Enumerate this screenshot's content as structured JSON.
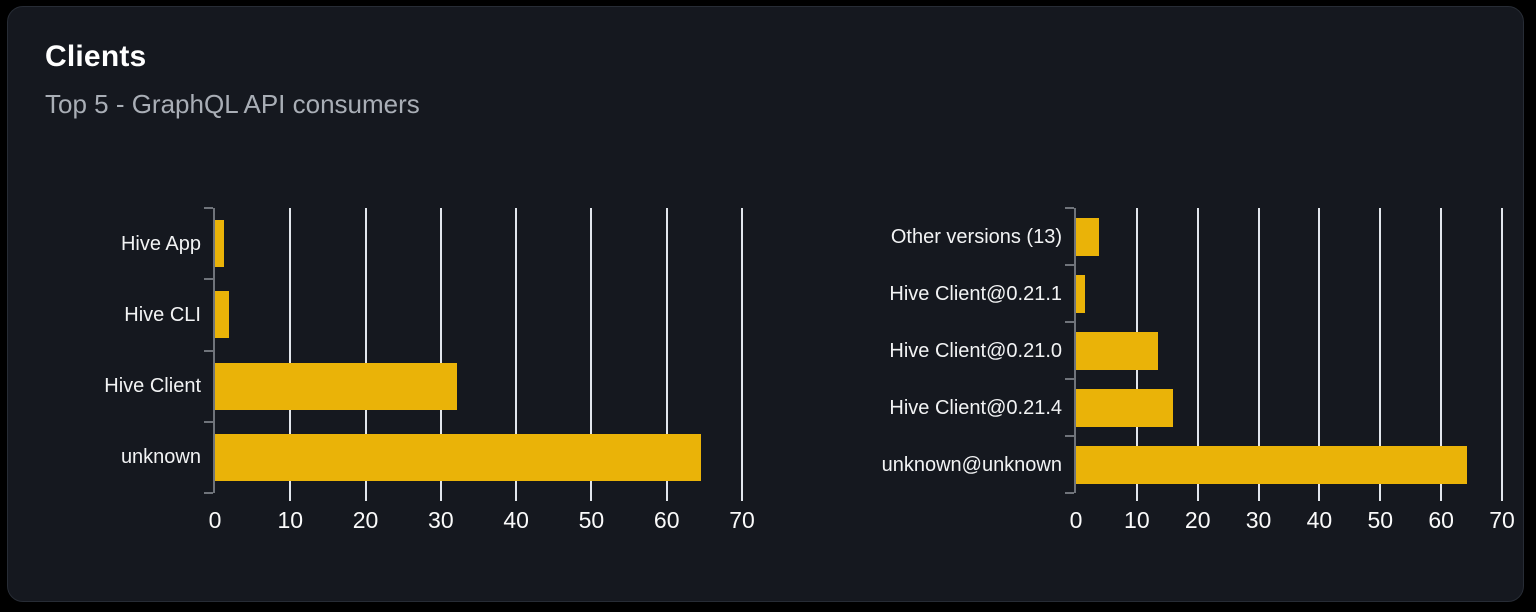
{
  "card": {
    "title": "Clients",
    "subtitle": "Top 5 - GraphQL API consumers"
  },
  "colors": {
    "page_bg": "#000000",
    "card_bg": "#15181f",
    "card_border": "#272c35",
    "bar": "#eab308",
    "gridline": "#e2e6ec",
    "axis": "#6f737a",
    "category_label": "#f2f3f4",
    "tick_label": "#fafafa",
    "title": "#ffffff",
    "subtitle": "#a9aeb6"
  },
  "chart_data": [
    {
      "type": "bar",
      "orientation": "horizontal",
      "title": "",
      "categories": [
        "Hive App",
        "Hive CLI",
        "Hive Client",
        "unknown"
      ],
      "values": [
        1.2,
        1.9,
        32.2,
        64.5
      ],
      "xlabel": "",
      "ylabel": "",
      "xlim": [
        0,
        70
      ],
      "xticks": [
        0,
        10,
        20,
        30,
        40,
        50,
        60,
        70
      ],
      "grid": true,
      "legend": false,
      "bar_color": "#eab308"
    },
    {
      "type": "bar",
      "orientation": "horizontal",
      "title": "",
      "categories": [
        "Other versions (13)",
        "Hive Client@0.21.1",
        "Hive Client@0.21.0",
        "Hive Client@0.21.4",
        "unknown@unknown"
      ],
      "values": [
        3.7,
        1.5,
        13.4,
        16.0,
        64.3
      ],
      "xlabel": "",
      "ylabel": "",
      "xlim": [
        0,
        70
      ],
      "xticks": [
        0,
        10,
        20,
        30,
        40,
        50,
        60,
        70
      ],
      "grid": true,
      "legend": false,
      "bar_color": "#eab308"
    }
  ]
}
